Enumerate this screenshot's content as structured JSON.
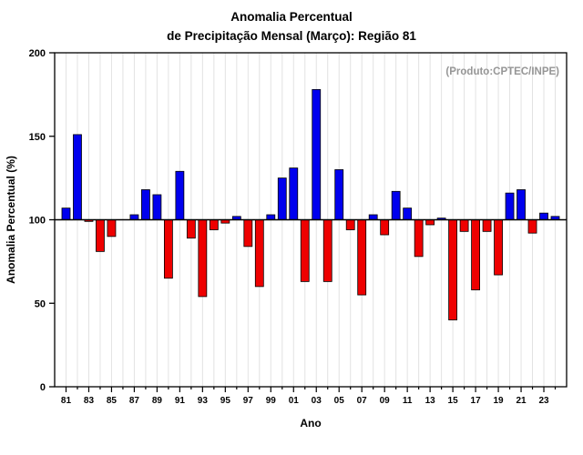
{
  "chart_data": {
    "type": "bar",
    "title_line1": "Anomalia Percentual",
    "title_line2": "de Precipitação Mensal (Março): Região 81",
    "ylabel": "Anomalia Percentual (%)",
    "xlabel": "Ano",
    "annotation": "(Produto:CPTEC/INPE)",
    "baseline": 100,
    "ylim": [
      0,
      200
    ],
    "yticks": [
      0,
      50,
      100,
      150,
      200
    ],
    "grid": "vertical-light",
    "legend": "none",
    "years": [
      "81",
      "82",
      "83",
      "84",
      "85",
      "86",
      "87",
      "88",
      "89",
      "90",
      "91",
      "92",
      "93",
      "94",
      "95",
      "96",
      "97",
      "98",
      "99",
      "00",
      "01",
      "02",
      "03",
      "04",
      "05",
      "06",
      "07",
      "08",
      "09",
      "10",
      "11",
      "12",
      "13",
      "14",
      "15",
      "16",
      "17",
      "18",
      "19",
      "20",
      "21",
      "22",
      "23",
      "24"
    ],
    "xtick_labels": [
      "81",
      "83",
      "85",
      "87",
      "89",
      "91",
      "93",
      "95",
      "97",
      "99",
      "01",
      "03",
      "05",
      "07",
      "09",
      "11",
      "13",
      "15",
      "17",
      "19",
      "21",
      "23"
    ],
    "values": [
      107,
      151,
      99,
      81,
      90,
      100,
      103,
      118,
      115,
      65,
      129,
      89,
      54,
      94,
      98,
      102,
      84,
      60,
      103,
      125,
      131,
      63,
      178,
      63,
      130,
      94,
      55,
      103,
      91,
      117,
      107,
      78,
      97,
      101,
      40,
      93,
      58,
      93,
      67,
      116,
      118,
      92,
      104,
      102
    ],
    "colors": {
      "above_baseline": "#0000ee",
      "below_baseline": "#ee0000",
      "bar_outline": "#000000",
      "gridline": "#e2e2e2",
      "axis": "#000000",
      "annotation_text": "#969696"
    }
  }
}
